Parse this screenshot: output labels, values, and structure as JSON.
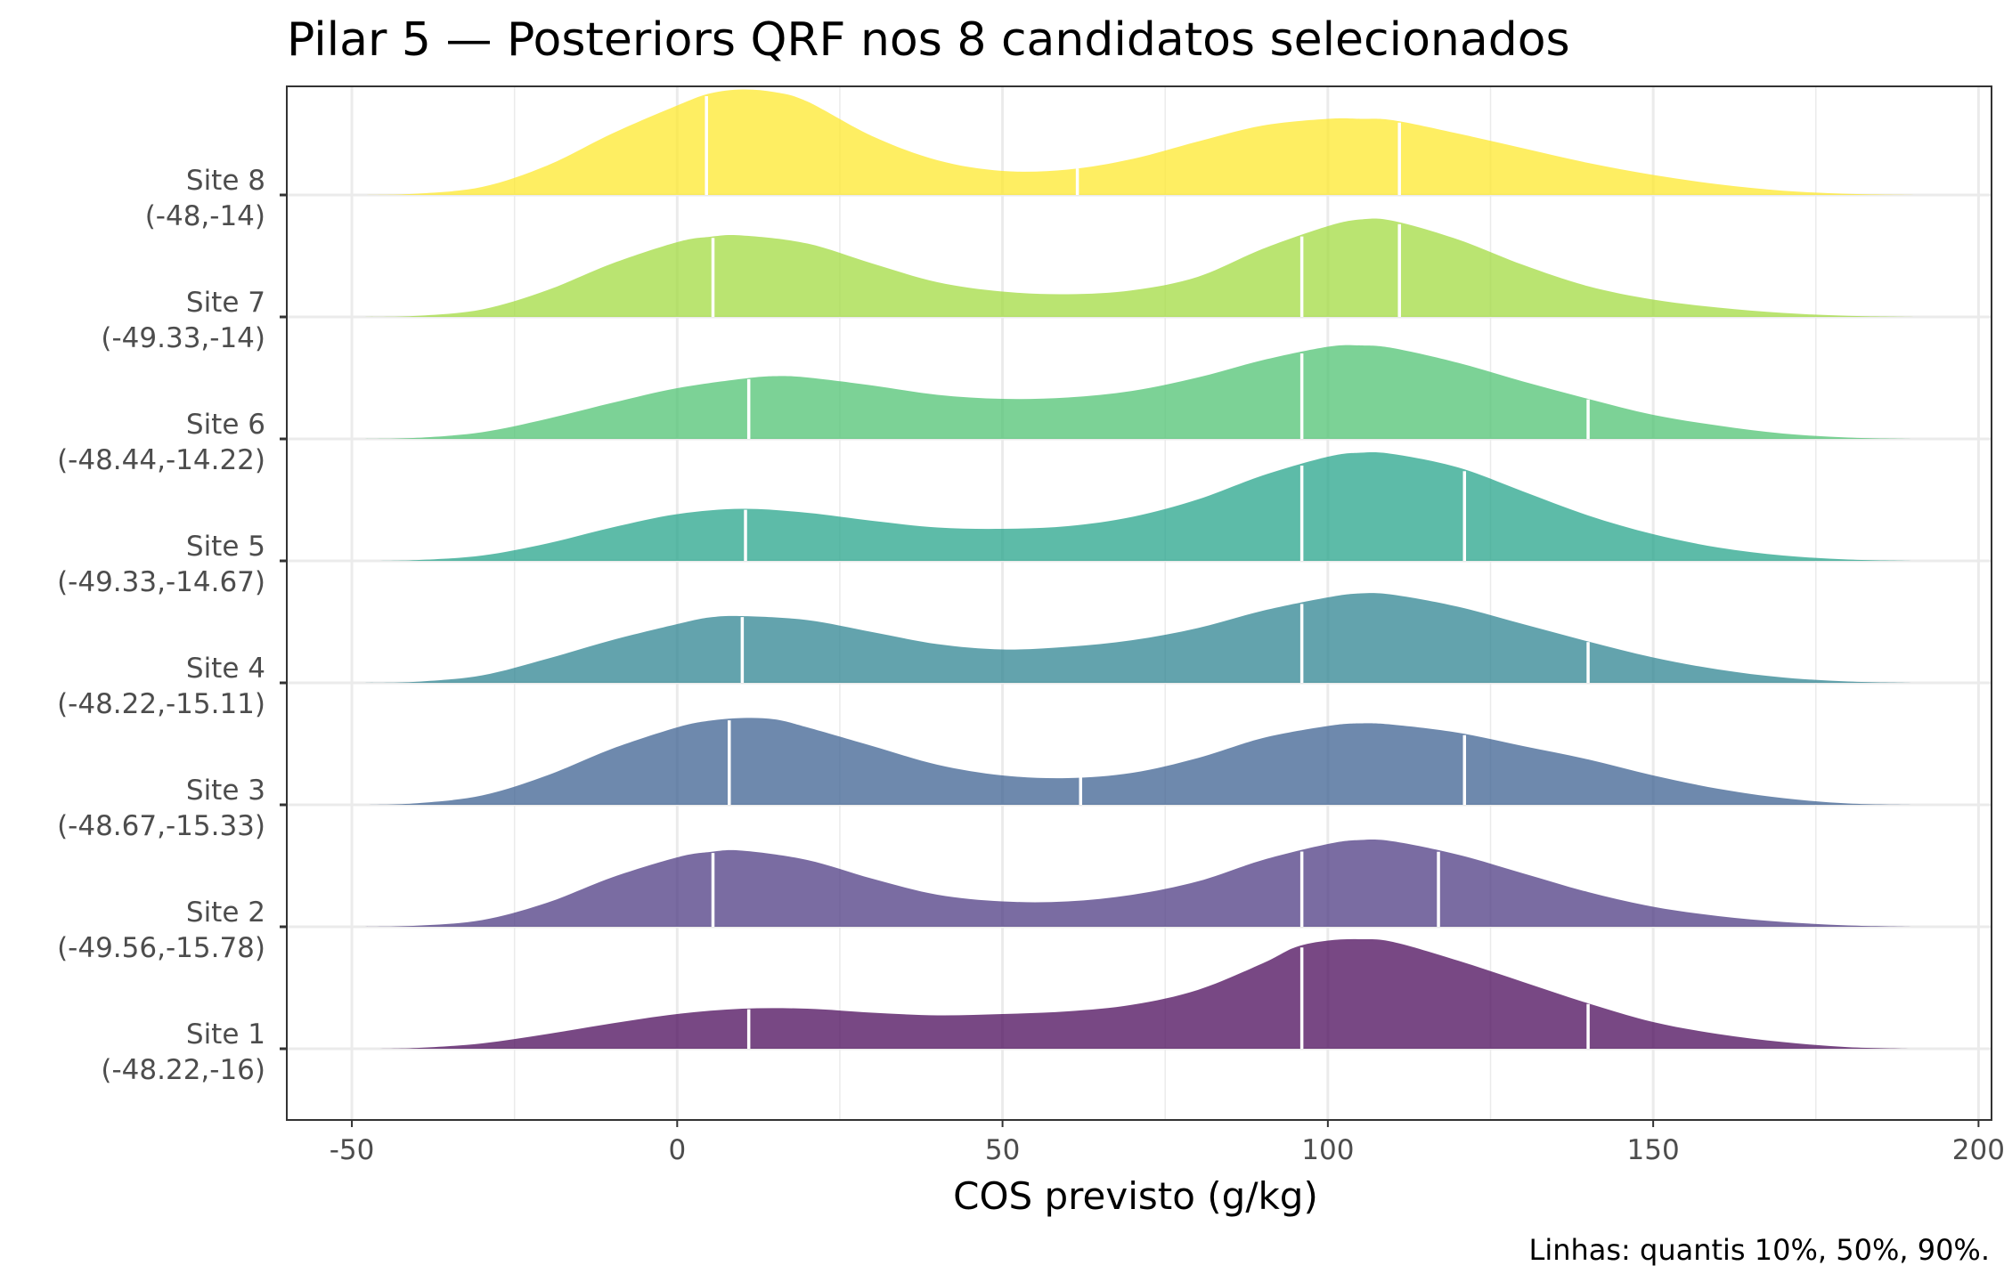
{
  "chart_data": {
    "type": "ridgeline",
    "title": "Pilar 5 — Posteriors QRF nos 8 candidatos selecionados",
    "xlabel": "COS previsto (g/kg)",
    "ylabel": "",
    "caption": "Linhas: quantis 10%, 50%, 90%.",
    "xlim": [
      -60,
      202
    ],
    "xticks": [
      -50,
      0,
      50,
      100,
      150,
      200
    ],
    "xtick_labels": [
      "-50",
      "0",
      "50",
      "100",
      "150",
      "200"
    ],
    "grid": true,
    "fill_opacity": 0.72,
    "quantile_line_color": "#ffffff",
    "curve_support": [
      -48,
      190
    ],
    "series": [
      {
        "name": "Site 1",
        "coords": "(-48.22,-16)",
        "color": "#440154",
        "curve": [
          [
            -48,
            0
          ],
          [
            -40,
            0.3
          ],
          [
            -30,
            2
          ],
          [
            -20,
            5.5
          ],
          [
            -10,
            9.5
          ],
          [
            0,
            13
          ],
          [
            10,
            15
          ],
          [
            20,
            15
          ],
          [
            30,
            13.5
          ],
          [
            40,
            12.5
          ],
          [
            50,
            13
          ],
          [
            60,
            14
          ],
          [
            70,
            16.5
          ],
          [
            80,
            22
          ],
          [
            90,
            32
          ],
          [
            95,
            38
          ],
          [
            100,
            40.5
          ],
          [
            105,
            41
          ],
          [
            110,
            40
          ],
          [
            120,
            33
          ],
          [
            130,
            25
          ],
          [
            140,
            17
          ],
          [
            150,
            10
          ],
          [
            160,
            5.5
          ],
          [
            170,
            2.5
          ],
          [
            180,
            0.6
          ],
          [
            190,
            0
          ]
        ],
        "quantiles": [
          11,
          96,
          140
        ]
      },
      {
        "name": "Site 2",
        "coords": "(-49.56,-15.78)",
        "color": "#46337e",
        "curve": [
          [
            -48,
            0
          ],
          [
            -40,
            0.4
          ],
          [
            -30,
            2.5
          ],
          [
            -20,
            9
          ],
          [
            -10,
            18.5
          ],
          [
            0,
            26
          ],
          [
            5,
            28
          ],
          [
            10,
            28.5
          ],
          [
            20,
            25
          ],
          [
            30,
            18
          ],
          [
            40,
            12
          ],
          [
            50,
            9.5
          ],
          [
            60,
            9.5
          ],
          [
            70,
            12
          ],
          [
            80,
            17
          ],
          [
            90,
            25
          ],
          [
            100,
            31
          ],
          [
            105,
            32.5
          ],
          [
            110,
            32
          ],
          [
            120,
            27
          ],
          [
            130,
            20
          ],
          [
            140,
            13
          ],
          [
            150,
            7.5
          ],
          [
            160,
            4
          ],
          [
            170,
            1.8
          ],
          [
            180,
            0.5
          ],
          [
            190,
            0
          ]
        ],
        "quantiles": [
          5.5,
          96,
          117
        ]
      },
      {
        "name": "Site 3",
        "coords": "(-48.67,-15.33)",
        "color": "#365c8d",
        "curve": [
          [
            -48,
            0
          ],
          [
            -40,
            0.6
          ],
          [
            -30,
            3.5
          ],
          [
            -20,
            11
          ],
          [
            -10,
            21
          ],
          [
            0,
            29
          ],
          [
            5,
            31.5
          ],
          [
            10,
            32.5
          ],
          [
            15,
            32
          ],
          [
            20,
            29
          ],
          [
            30,
            22
          ],
          [
            40,
            15
          ],
          [
            50,
            11
          ],
          [
            60,
            10
          ],
          [
            70,
            12
          ],
          [
            80,
            17.5
          ],
          [
            90,
            25
          ],
          [
            100,
            29.5
          ],
          [
            105,
            30.5
          ],
          [
            110,
            30
          ],
          [
            120,
            27
          ],
          [
            130,
            22
          ],
          [
            140,
            17
          ],
          [
            150,
            11
          ],
          [
            160,
            6
          ],
          [
            170,
            2.5
          ],
          [
            180,
            0.5
          ],
          [
            190,
            0
          ]
        ],
        "quantiles": [
          8,
          62,
          121
        ]
      },
      {
        "name": "Site 4",
        "coords": "(-48.22,-15.11)",
        "color": "#277f8e",
        "curve": [
          [
            -48,
            0
          ],
          [
            -40,
            0.4
          ],
          [
            -30,
            2.8
          ],
          [
            -20,
            9
          ],
          [
            -10,
            16
          ],
          [
            0,
            22
          ],
          [
            5,
            24.5
          ],
          [
            10,
            25
          ],
          [
            20,
            23.5
          ],
          [
            30,
            19
          ],
          [
            40,
            14.5
          ],
          [
            50,
            12.5
          ],
          [
            60,
            13.5
          ],
          [
            70,
            16
          ],
          [
            80,
            20.5
          ],
          [
            90,
            27
          ],
          [
            100,
            32
          ],
          [
            105,
            33.5
          ],
          [
            110,
            33
          ],
          [
            120,
            28.5
          ],
          [
            130,
            22
          ],
          [
            140,
            15.5
          ],
          [
            150,
            9.5
          ],
          [
            160,
            5
          ],
          [
            170,
            2
          ],
          [
            180,
            0.5
          ],
          [
            190,
            0
          ]
        ],
        "quantiles": [
          10,
          96,
          140
        ]
      },
      {
        "name": "Site 5",
        "coords": "(-49.33,-14.67)",
        "color": "#1fa187",
        "curve": [
          [
            -48,
            0
          ],
          [
            -40,
            0.3
          ],
          [
            -30,
            2
          ],
          [
            -20,
            6.5
          ],
          [
            -10,
            12.5
          ],
          [
            0,
            17.5
          ],
          [
            10,
            19.5
          ],
          [
            20,
            18
          ],
          [
            30,
            15
          ],
          [
            40,
            12.5
          ],
          [
            50,
            12
          ],
          [
            60,
            13
          ],
          [
            70,
            16.5
          ],
          [
            80,
            23
          ],
          [
            90,
            32
          ],
          [
            100,
            39
          ],
          [
            105,
            40.5
          ],
          [
            110,
            40
          ],
          [
            120,
            35
          ],
          [
            130,
            26
          ],
          [
            140,
            17
          ],
          [
            150,
            10
          ],
          [
            160,
            5
          ],
          [
            170,
            2
          ],
          [
            180,
            0.5
          ],
          [
            190,
            0
          ]
        ],
        "quantiles": [
          10.5,
          96,
          121
        ]
      },
      {
        "name": "Site 6",
        "coords": "(-48.44,-14.22)",
        "color": "#4ac16d",
        "curve": [
          [
            -48,
            0
          ],
          [
            -40,
            0.4
          ],
          [
            -30,
            2.5
          ],
          [
            -20,
            7.5
          ],
          [
            -10,
            13.5
          ],
          [
            0,
            19
          ],
          [
            10,
            22.5
          ],
          [
            15,
            23.5
          ],
          [
            20,
            23
          ],
          [
            30,
            20
          ],
          [
            40,
            16.5
          ],
          [
            50,
            15
          ],
          [
            60,
            15.5
          ],
          [
            70,
            18
          ],
          [
            80,
            23
          ],
          [
            90,
            29.5
          ],
          [
            100,
            34.5
          ],
          [
            105,
            35
          ],
          [
            110,
            34
          ],
          [
            120,
            28.5
          ],
          [
            130,
            21.5
          ],
          [
            140,
            15
          ],
          [
            150,
            9
          ],
          [
            160,
            5
          ],
          [
            170,
            2
          ],
          [
            180,
            0.5
          ],
          [
            190,
            0
          ]
        ],
        "quantiles": [
          11,
          96,
          140
        ]
      },
      {
        "name": "Site 7",
        "coords": "(-49.33,-14)",
        "color": "#9fda3a",
        "curve": [
          [
            -48,
            0
          ],
          [
            -40,
            0.4
          ],
          [
            -30,
            2.8
          ],
          [
            -20,
            10
          ],
          [
            -10,
            20
          ],
          [
            0,
            28
          ],
          [
            5,
            30
          ],
          [
            10,
            30.5
          ],
          [
            20,
            27.5
          ],
          [
            30,
            20
          ],
          [
            40,
            13
          ],
          [
            50,
            9.5
          ],
          [
            60,
            8.5
          ],
          [
            70,
            10
          ],
          [
            80,
            15
          ],
          [
            90,
            25.5
          ],
          [
            100,
            34
          ],
          [
            105,
            36.5
          ],
          [
            110,
            36
          ],
          [
            120,
            29
          ],
          [
            130,
            19.5
          ],
          [
            140,
            11.5
          ],
          [
            150,
            6.5
          ],
          [
            160,
            3.5
          ],
          [
            170,
            1.5
          ],
          [
            180,
            0.4
          ],
          [
            190,
            0
          ]
        ],
        "quantiles": [
          5.5,
          96,
          111
        ]
      },
      {
        "name": "Site 8",
        "coords": "(-48,-14)",
        "color": "#fde725",
        "curve": [
          [
            -48,
            0
          ],
          [
            -40,
            0.5
          ],
          [
            -30,
            3
          ],
          [
            -20,
            11
          ],
          [
            -10,
            23
          ],
          [
            0,
            33.5
          ],
          [
            5,
            38
          ],
          [
            10,
            39.5
          ],
          [
            15,
            38.5
          ],
          [
            20,
            35
          ],
          [
            30,
            22
          ],
          [
            40,
            13
          ],
          [
            50,
            9
          ],
          [
            60,
            9.5
          ],
          [
            70,
            13.5
          ],
          [
            80,
            20
          ],
          [
            90,
            26
          ],
          [
            100,
            28.5
          ],
          [
            105,
            28.5
          ],
          [
            110,
            28
          ],
          [
            120,
            23
          ],
          [
            130,
            17.5
          ],
          [
            140,
            12
          ],
          [
            150,
            7.5
          ],
          [
            160,
            4
          ],
          [
            170,
            1.6
          ],
          [
            180,
            0.4
          ],
          [
            190,
            0
          ]
        ],
        "quantiles": [
          4.5,
          61.5,
          111
        ]
      }
    ]
  }
}
